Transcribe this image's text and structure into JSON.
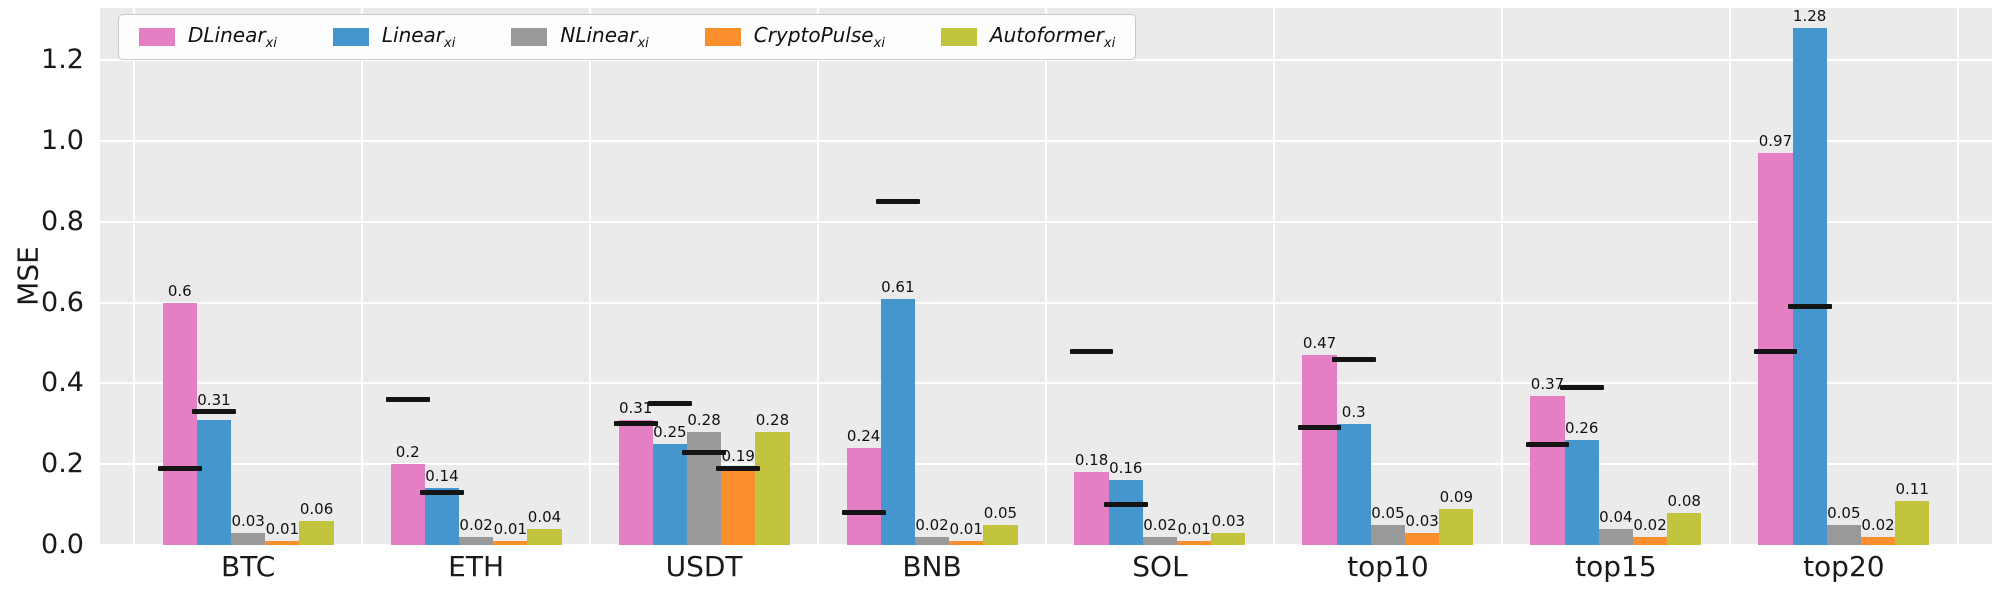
{
  "chart_data": {
    "type": "bar",
    "title": "",
    "ylabel": "MSE",
    "ylim": [
      0,
      1.33
    ],
    "yticks": [
      "0.0",
      "0.2",
      "0.4",
      "0.6",
      "0.8",
      "1.0",
      "1.2"
    ],
    "ytick_values": [
      0,
      0.2,
      0.4,
      0.6,
      0.8,
      1.0,
      1.2
    ],
    "grid": true,
    "legend_position": "upper-left",
    "plot_background": "#ebebeb",
    "grid_color": "#ffffff",
    "marker_color": "#141414",
    "categories": [
      "BTC",
      "ETH",
      "USDT",
      "BNB",
      "SOL",
      "top10",
      "top15",
      "top20"
    ],
    "series": [
      {
        "name": "DLinear",
        "subscript": "xi",
        "color": "#e57fc3",
        "values": [
          0.6,
          0.2,
          0.31,
          0.24,
          0.18,
          0.47,
          0.37,
          0.97
        ]
      },
      {
        "name": "Linear",
        "subscript": "xi",
        "color": "#4596cd",
        "values": [
          0.31,
          0.14,
          0.25,
          0.61,
          0.16,
          0.3,
          0.26,
          1.28
        ]
      },
      {
        "name": "NLinear",
        "subscript": "xi",
        "color": "#999999",
        "values": [
          0.03,
          0.02,
          0.28,
          0.02,
          0.02,
          0.05,
          0.04,
          0.05
        ]
      },
      {
        "name": "CryptoPulse",
        "subscript": "xi",
        "color": "#fb8f2d",
        "values": [
          0.01,
          0.01,
          0.19,
          0.01,
          0.01,
          0.03,
          0.02,
          0.02
        ]
      },
      {
        "name": "Autoformer",
        "subscript": "xi",
        "color": "#c3c43e",
        "values": [
          0.06,
          0.04,
          0.28,
          0.05,
          0.03,
          0.09,
          0.08,
          0.11
        ]
      }
    ],
    "markers": [
      {
        "category": "BTC",
        "series": "DLinear",
        "y": 0.19
      },
      {
        "category": "BTC",
        "series": "Linear",
        "y": 0.33
      },
      {
        "category": "ETH",
        "series": "DLinear",
        "y": 0.36
      },
      {
        "category": "ETH",
        "series": "Linear",
        "y": 0.13
      },
      {
        "category": "USDT",
        "series": "DLinear",
        "y": 0.3
      },
      {
        "category": "USDT",
        "series": "Linear",
        "y": 0.35
      },
      {
        "category": "USDT",
        "series": "NLinear",
        "y": 0.23
      },
      {
        "category": "USDT",
        "series": "CryptoPulse",
        "y": 0.19
      },
      {
        "category": "BNB",
        "series": "DLinear",
        "y": 0.08
      },
      {
        "category": "BNB",
        "series": "Linear",
        "y": 0.85
      },
      {
        "category": "SOL",
        "series": "DLinear",
        "y": 0.48
      },
      {
        "category": "SOL",
        "series": "Linear",
        "y": 0.1
      },
      {
        "category": "top10",
        "series": "DLinear",
        "y": 0.29
      },
      {
        "category": "top10",
        "series": "Linear",
        "y": 0.46
      },
      {
        "category": "top15",
        "series": "DLinear",
        "y": 0.25
      },
      {
        "category": "top15",
        "series": "Linear",
        "y": 0.39
      },
      {
        "category": "top20",
        "series": "DLinear",
        "y": 0.48
      },
      {
        "category": "top20",
        "series": "Linear",
        "y": 0.59
      }
    ]
  }
}
